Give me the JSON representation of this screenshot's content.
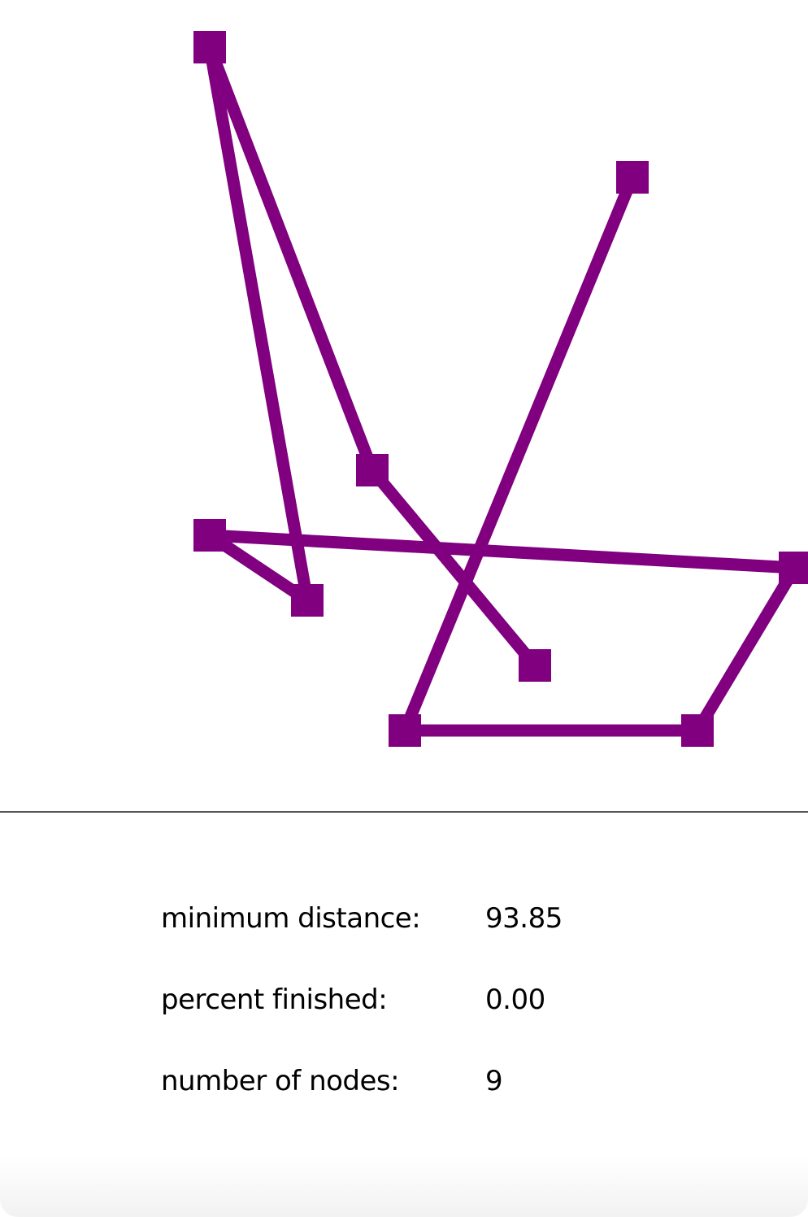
{
  "colors": {
    "tour": "#800080",
    "divider": "#555555",
    "background": "#ffffff"
  },
  "stats": {
    "min_distance_label": "minimum distance:",
    "min_distance_value": "93.85",
    "percent_finished_label": "percent finished:",
    "percent_finished_value": "0.00",
    "node_count_label": "number of nodes:",
    "node_count_value": "9"
  }
}
